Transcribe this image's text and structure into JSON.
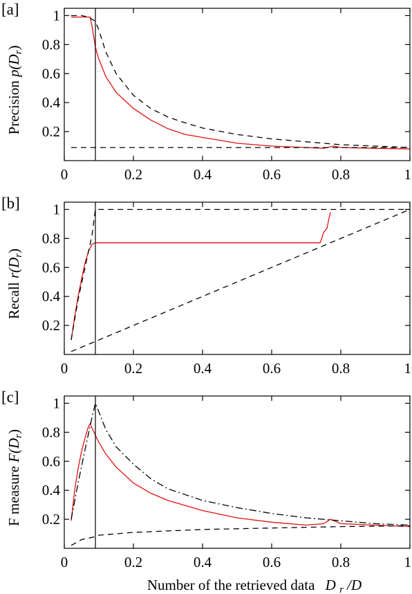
{
  "colors": {
    "red": "#e01010",
    "black": "#000000"
  },
  "xlabel": {
    "main": "Number of the retrieved data",
    "sym": "D",
    "sub": "r",
    "suffix": "/D"
  },
  "chart_data": [
    {
      "type": "line",
      "panel": "[a]",
      "ylabel": {
        "prefix": "Precision ",
        "func": "p(",
        "sym": "D",
        "sub": "r",
        "close": ")"
      },
      "xlim": [
        0,
        1
      ],
      "ylim": [
        0,
        1.05
      ],
      "x_ticks": [
        "0",
        "0.2",
        "0.4",
        "0.6",
        "0.8",
        "1"
      ],
      "x_tick_values": [
        0,
        0.2,
        0.4,
        0.6,
        0.8,
        1
      ],
      "y_ticks": [
        "0.2",
        "0.4",
        "0.6",
        "0.8",
        "1"
      ],
      "y_tick_values": [
        0.2,
        0.4,
        0.6,
        0.8,
        1
      ],
      "vline": 0.09,
      "series": [
        {
          "color": "#e01010",
          "dash": "",
          "points": [
            [
              0.02,
              0.99
            ],
            [
              0.04,
              0.99
            ],
            [
              0.06,
              0.99
            ],
            [
              0.075,
              0.99
            ],
            [
              0.08,
              0.93
            ],
            [
              0.09,
              0.78
            ],
            [
              0.1,
              0.7
            ],
            [
              0.12,
              0.58
            ],
            [
              0.15,
              0.47
            ],
            [
              0.2,
              0.36
            ],
            [
              0.25,
              0.28
            ],
            [
              0.3,
              0.22
            ],
            [
              0.35,
              0.18
            ],
            [
              0.4,
              0.16
            ],
            [
              0.5,
              0.12
            ],
            [
              0.6,
              0.1
            ],
            [
              0.7,
              0.09
            ],
            [
              0.75,
              0.085
            ],
            [
              0.78,
              0.1
            ],
            [
              0.8,
              0.09
            ],
            [
              0.9,
              0.085
            ],
            [
              1.0,
              0.08
            ]
          ]
        },
        {
          "color": "#000000",
          "dash": "8,6",
          "points": [
            [
              0.02,
              1.0
            ],
            [
              0.05,
              1.0
            ],
            [
              0.07,
              0.99
            ],
            [
              0.09,
              0.96
            ],
            [
              0.1,
              0.9
            ],
            [
              0.12,
              0.75
            ],
            [
              0.15,
              0.6
            ],
            [
              0.2,
              0.45
            ],
            [
              0.25,
              0.36
            ],
            [
              0.3,
              0.3
            ],
            [
              0.35,
              0.26
            ],
            [
              0.4,
              0.225
            ],
            [
              0.5,
              0.18
            ],
            [
              0.6,
              0.15
            ],
            [
              0.7,
              0.13
            ],
            [
              0.8,
              0.11
            ],
            [
              0.9,
              0.1
            ],
            [
              1.0,
              0.09
            ]
          ]
        },
        {
          "color": "#000000",
          "dash": "8,6",
          "points": [
            [
              0.02,
              0.09
            ],
            [
              1.0,
              0.09
            ]
          ]
        }
      ]
    },
    {
      "type": "line",
      "panel": "[b]",
      "ylabel": {
        "prefix": "Recall ",
        "func": "r(",
        "sym": "D",
        "sub": "r",
        "close": ")"
      },
      "xlim": [
        0,
        1
      ],
      "ylim": [
        0,
        1.05
      ],
      "x_ticks": [
        "0",
        "0.2",
        "0.4",
        "0.6",
        "0.8",
        "1"
      ],
      "x_tick_values": [
        0,
        0.2,
        0.4,
        0.6,
        0.8,
        1
      ],
      "y_ticks": [
        "0.2",
        "0.4",
        "0.6",
        "0.8",
        "1"
      ],
      "y_tick_values": [
        0.2,
        0.4,
        0.6,
        0.8,
        1
      ],
      "vline": 0.09,
      "series": [
        {
          "color": "#e01010",
          "dash": "",
          "points": [
            [
              0.02,
              0.1
            ],
            [
              0.03,
              0.26
            ],
            [
              0.04,
              0.4
            ],
            [
              0.05,
              0.52
            ],
            [
              0.06,
              0.63
            ],
            [
              0.07,
              0.71
            ],
            [
              0.08,
              0.76
            ],
            [
              0.09,
              0.77
            ],
            [
              0.3,
              0.77
            ],
            [
              0.5,
              0.77
            ],
            [
              0.74,
              0.77
            ],
            [
              0.745,
              0.8
            ],
            [
              0.75,
              0.84
            ],
            [
              0.76,
              0.87
            ],
            [
              0.765,
              0.93
            ],
            [
              0.77,
              0.98
            ]
          ]
        },
        {
          "color": "#000000",
          "dash": "8,6",
          "points": [
            [
              0.02,
              0.1
            ],
            [
              0.04,
              0.38
            ],
            [
              0.06,
              0.6
            ],
            [
              0.08,
              0.82
            ],
            [
              0.09,
              1.0
            ],
            [
              1.0,
              1.0
            ]
          ]
        },
        {
          "color": "#000000",
          "dash": "8,6",
          "points": [
            [
              0.02,
              0.02
            ],
            [
              1.0,
              1.0
            ]
          ]
        }
      ]
    },
    {
      "type": "line",
      "panel": "[c]",
      "ylabel": {
        "prefix": "F measure ",
        "func": "F(",
        "sym": "D",
        "sub": "r",
        "close": ")"
      },
      "xlim": [
        0,
        1
      ],
      "ylim": [
        0,
        1.05
      ],
      "x_ticks": [
        "0",
        "0.2",
        "0.4",
        "0.6",
        "0.8",
        "1"
      ],
      "x_tick_values": [
        0,
        0.2,
        0.4,
        0.6,
        0.8,
        1
      ],
      "y_ticks": [
        "0.2",
        "0.4",
        "0.6",
        "0.8",
        "1"
      ],
      "y_tick_values": [
        0.2,
        0.4,
        0.6,
        0.8,
        1
      ],
      "vline": 0.09,
      "series": [
        {
          "color": "#e01010",
          "dash": "",
          "points": [
            [
              0.02,
              0.19
            ],
            [
              0.03,
              0.4
            ],
            [
              0.04,
              0.55
            ],
            [
              0.05,
              0.67
            ],
            [
              0.06,
              0.76
            ],
            [
              0.07,
              0.84
            ],
            [
              0.075,
              0.86
            ],
            [
              0.08,
              0.83
            ],
            [
              0.09,
              0.78
            ],
            [
              0.1,
              0.73
            ],
            [
              0.12,
              0.65
            ],
            [
              0.15,
              0.56
            ],
            [
              0.2,
              0.45
            ],
            [
              0.25,
              0.38
            ],
            [
              0.3,
              0.33
            ],
            [
              0.4,
              0.26
            ],
            [
              0.5,
              0.21
            ],
            [
              0.6,
              0.18
            ],
            [
              0.7,
              0.16
            ],
            [
              0.75,
              0.17
            ],
            [
              0.77,
              0.2
            ],
            [
              0.8,
              0.17
            ],
            [
              0.9,
              0.16
            ],
            [
              1.0,
              0.15
            ]
          ]
        },
        {
          "color": "#000000",
          "dash": "10,4,2,4",
          "points": [
            [
              0.02,
              0.2
            ],
            [
              0.04,
              0.45
            ],
            [
              0.06,
              0.68
            ],
            [
              0.08,
              0.9
            ],
            [
              0.09,
              1.0
            ],
            [
              0.1,
              0.94
            ],
            [
              0.12,
              0.82
            ],
            [
              0.15,
              0.7
            ],
            [
              0.2,
              0.58
            ],
            [
              0.25,
              0.48
            ],
            [
              0.3,
              0.41
            ],
            [
              0.4,
              0.33
            ],
            [
              0.5,
              0.28
            ],
            [
              0.6,
              0.24
            ],
            [
              0.7,
              0.21
            ],
            [
              0.8,
              0.19
            ],
            [
              0.9,
              0.17
            ],
            [
              1.0,
              0.16
            ]
          ]
        },
        {
          "color": "#000000",
          "dash": "8,6",
          "points": [
            [
              0.02,
              0.02
            ],
            [
              0.05,
              0.06
            ],
            [
              0.09,
              0.08
            ],
            [
              0.1,
              0.09
            ],
            [
              0.2,
              0.11
            ],
            [
              0.3,
              0.12
            ],
            [
              0.4,
              0.13
            ],
            [
              0.6,
              0.14
            ],
            [
              0.8,
              0.15
            ],
            [
              1.0,
              0.155
            ]
          ]
        }
      ]
    }
  ]
}
